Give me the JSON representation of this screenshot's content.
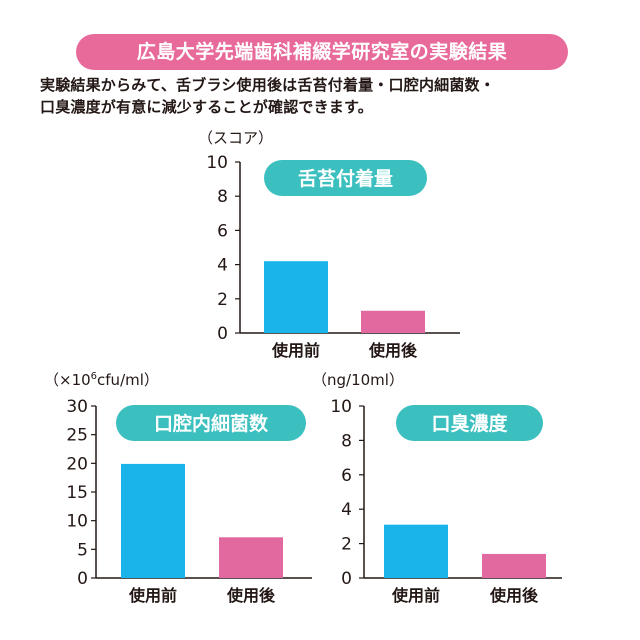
{
  "header": {
    "title": "広島大学先端歯科補綴学研究室の実験結果",
    "description_line1": "実験結果からみて、舌ブラシ使用後は舌苔付着量・口腔内細菌数・",
    "description_line2": "口臭濃度が有意に減少することが確認できます。"
  },
  "colors": {
    "banner": "#e86a9b",
    "pill": "#3cbfbf",
    "before": "#1ab4ea",
    "after": "#e2699f",
    "axis": "#231815"
  },
  "chart_data": [
    {
      "type": "bar",
      "title": "舌苔付着量",
      "unit_label": "（スコア）",
      "categories": [
        "使用前",
        "使用後"
      ],
      "values": [
        4.2,
        1.3
      ],
      "ylim": [
        0,
        10
      ],
      "yticks": [
        0,
        2,
        4,
        6,
        8,
        10
      ],
      "grid": false
    },
    {
      "type": "bar",
      "title": "口腔内細菌数",
      "unit_label_prefix": "（×10",
      "unit_label_exponent": "6",
      "unit_label_suffix": "cfu/ml）",
      "categories": [
        "使用前",
        "使用後"
      ],
      "values": [
        19.9,
        7.1
      ],
      "ylim": [
        0,
        30
      ],
      "yticks": [
        0,
        5,
        10,
        15,
        20,
        25,
        30
      ],
      "grid": false
    },
    {
      "type": "bar",
      "title": "口臭濃度",
      "unit_label": "（ng/10ml）",
      "categories": [
        "使用前",
        "使用後"
      ],
      "values": [
        3.1,
        1.4
      ],
      "ylim": [
        0,
        10
      ],
      "yticks": [
        0,
        2,
        4,
        6,
        8,
        10
      ],
      "grid": false
    }
  ]
}
